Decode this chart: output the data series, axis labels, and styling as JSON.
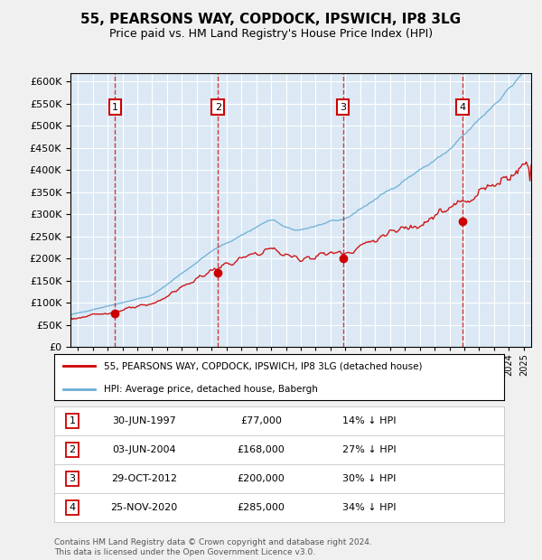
{
  "title": "55, PEARSONS WAY, COPDOCK, IPSWICH, IP8 3LG",
  "subtitle": "Price paid vs. HM Land Registry's House Price Index (HPI)",
  "background_color": "#f0f0f0",
  "plot_bg_color": "#dce9f5",
  "grid_color": "#ffffff",
  "hpi_color": "#6baed6",
  "price_color": "#cc0000",
  "purchases": [
    {
      "label": "1",
      "date_num": 1997.5,
      "price": 77000,
      "pct": "14%",
      "date_str": "30-JUN-1997"
    },
    {
      "label": "2",
      "date_num": 2004.42,
      "price": 168000,
      "pct": "27%",
      "date_str": "03-JUN-2004"
    },
    {
      "label": "3",
      "date_num": 2012.83,
      "price": 200000,
      "pct": "30%",
      "date_str": "29-OCT-2012"
    },
    {
      "label": "4",
      "date_num": 2020.9,
      "price": 285000,
      "pct": "34%",
      "date_str": "25-NOV-2020"
    }
  ],
  "xmin": 1994.5,
  "xmax": 2025.5,
  "ymin": 0,
  "ymax": 620000,
  "yticks": [
    0,
    50000,
    100000,
    150000,
    200000,
    250000,
    300000,
    350000,
    400000,
    450000,
    500000,
    550000,
    600000
  ],
  "legend_line1": "55, PEARSONS WAY, COPDOCK, IPSWICH, IP8 3LG (detached house)",
  "legend_line2": "HPI: Average price, detached house, Babergh",
  "footer1": "Contains HM Land Registry data © Crown copyright and database right 2024.",
  "footer2": "This data is licensed under the Open Government Licence v3.0."
}
